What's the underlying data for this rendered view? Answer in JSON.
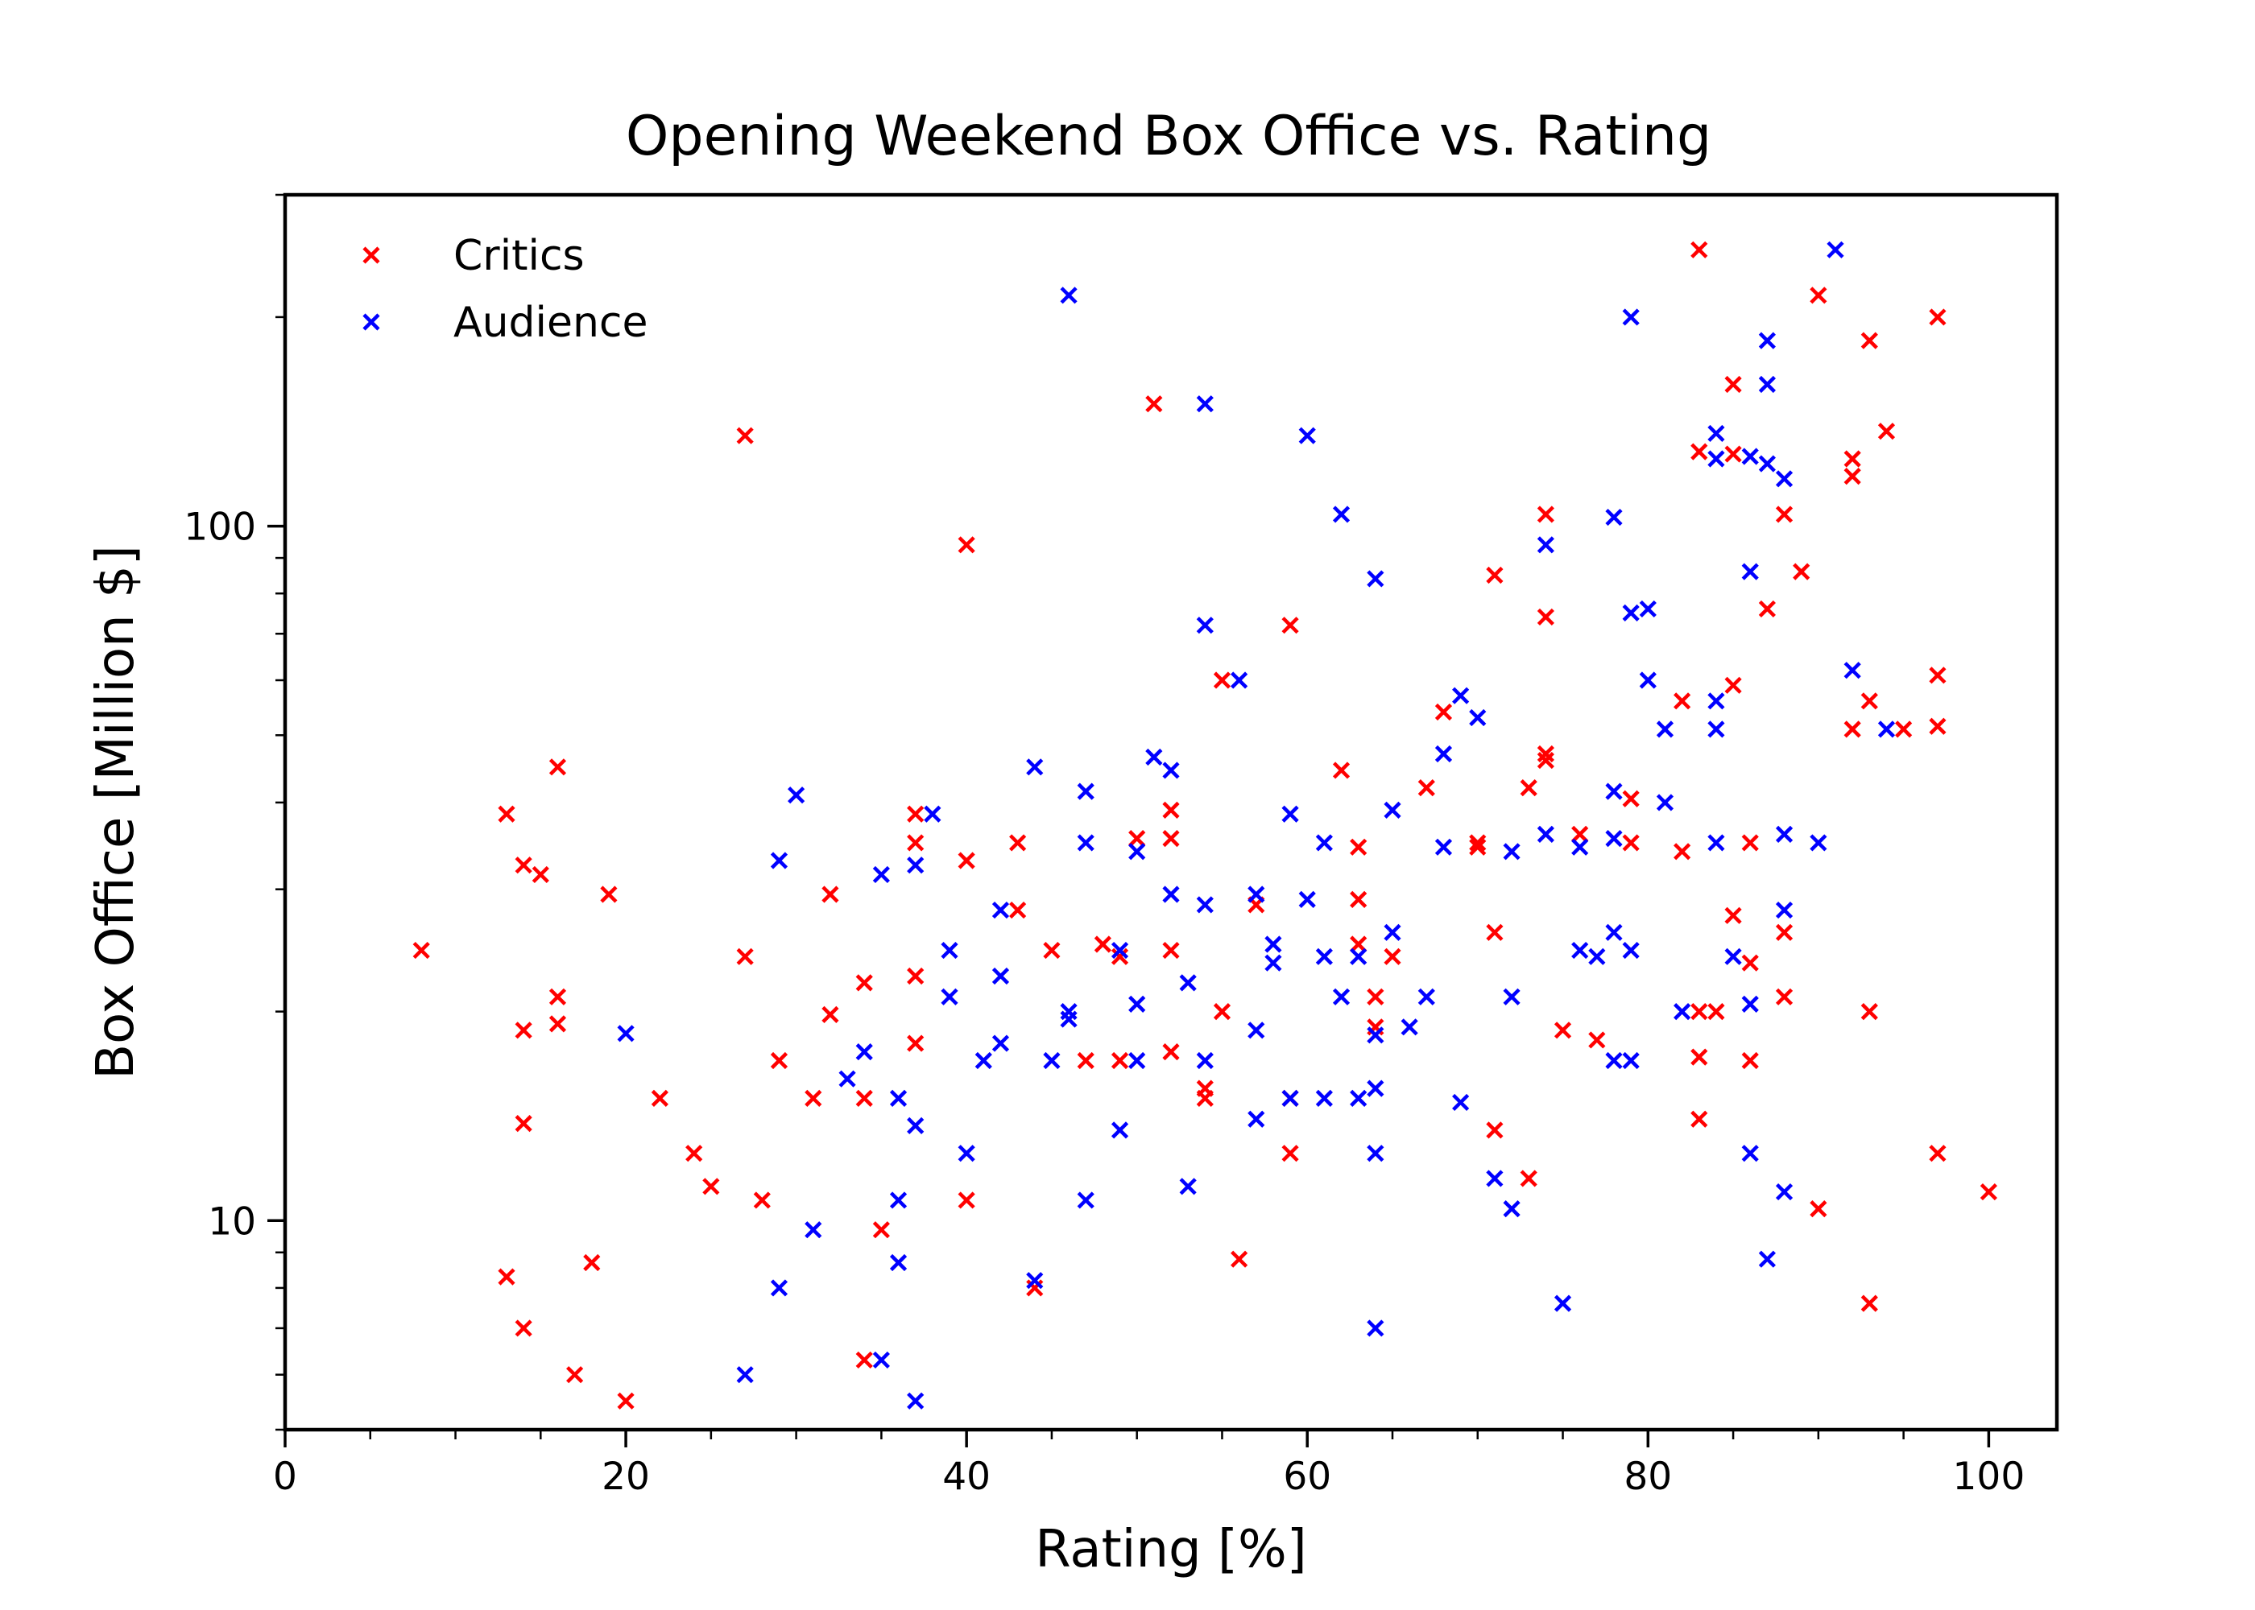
{
  "chart_data": {
    "type": "scatter",
    "title": "Opening Weekend Box Office vs. Rating",
    "xlabel": "Rating [%]",
    "ylabel": "Box Office [Million $]",
    "xlim": [
      0,
      104
    ],
    "ylim": [
      5,
      300
    ],
    "yscale": "log",
    "grid": false,
    "legend": "top-left",
    "x_ticks": [
      0,
      20,
      40,
      60,
      80,
      100
    ],
    "x_tick_labels": [
      "0",
      "20",
      "40",
      "60",
      "80",
      "100"
    ],
    "y_ticks": [
      10,
      100
    ],
    "y_tick_labels": [
      "10",
      "100"
    ],
    "series": [
      {
        "name": "Critics",
        "color": "#ff0000",
        "marker": "x",
        "points": [
          [
            8,
            24.5
          ],
          [
            13,
            38.5
          ],
          [
            13,
            8.3
          ],
          [
            14,
            32.5
          ],
          [
            14,
            18.8
          ],
          [
            14,
            13.8
          ],
          [
            14,
            7
          ],
          [
            15,
            31.5
          ],
          [
            16,
            45
          ],
          [
            16,
            21
          ],
          [
            16,
            19.2
          ],
          [
            17,
            6
          ],
          [
            18,
            8.7
          ],
          [
            19,
            29.5
          ],
          [
            20,
            5.5
          ],
          [
            22,
            15
          ],
          [
            24,
            12.5
          ],
          [
            25,
            11.2
          ],
          [
            27,
            135
          ],
          [
            27,
            24
          ],
          [
            28,
            10.7
          ],
          [
            29,
            17
          ],
          [
            31,
            15
          ],
          [
            32,
            29.5
          ],
          [
            32,
            19.8
          ],
          [
            34,
            22
          ],
          [
            34,
            15
          ],
          [
            34,
            6.3
          ],
          [
            35,
            9.7
          ],
          [
            37,
            38.5
          ],
          [
            37,
            35
          ],
          [
            37,
            22.5
          ],
          [
            37,
            18
          ],
          [
            40,
            94
          ],
          [
            40,
            33
          ],
          [
            40,
            10.7
          ],
          [
            43,
            35
          ],
          [
            43,
            28
          ],
          [
            44,
            8
          ],
          [
            45,
            24.5
          ],
          [
            47,
            17
          ],
          [
            48,
            25
          ],
          [
            49,
            24
          ],
          [
            49,
            17
          ],
          [
            50,
            35.5
          ],
          [
            51,
            150
          ],
          [
            52,
            39
          ],
          [
            52,
            35.5
          ],
          [
            52,
            24.5
          ],
          [
            52,
            17.5
          ],
          [
            54,
            15.5
          ],
          [
            54,
            15
          ],
          [
            55,
            60
          ],
          [
            55,
            20
          ],
          [
            56,
            8.8
          ],
          [
            57,
            28.5
          ],
          [
            59,
            72
          ],
          [
            59,
            15
          ],
          [
            59,
            12.5
          ],
          [
            62,
            44.5
          ],
          [
            63,
            34.5
          ],
          [
            63,
            29
          ],
          [
            63,
            25
          ],
          [
            64,
            21
          ],
          [
            64,
            19
          ],
          [
            65,
            24
          ],
          [
            67,
            42
          ],
          [
            68,
            54
          ],
          [
            70,
            35
          ],
          [
            70,
            34.5
          ],
          [
            71,
            85
          ],
          [
            71,
            26
          ],
          [
            71,
            13.5
          ],
          [
            73,
            42
          ],
          [
            73,
            11.5
          ],
          [
            74,
            104
          ],
          [
            74,
            74
          ],
          [
            74,
            47
          ],
          [
            74,
            46
          ],
          [
            75,
            18.8
          ],
          [
            76,
            36
          ],
          [
            77,
            18.2
          ],
          [
            79,
            40.5
          ],
          [
            79,
            35
          ],
          [
            82,
            56
          ],
          [
            82,
            34
          ],
          [
            83,
            250
          ],
          [
            83,
            128
          ],
          [
            83,
            20
          ],
          [
            83,
            17.2
          ],
          [
            83,
            14
          ],
          [
            84,
            20
          ],
          [
            85,
            160
          ],
          [
            85,
            127
          ],
          [
            85,
            59
          ],
          [
            85,
            27.5
          ],
          [
            86,
            35
          ],
          [
            86,
            23.5
          ],
          [
            86,
            17
          ],
          [
            87,
            76
          ],
          [
            88,
            104
          ],
          [
            88,
            26
          ],
          [
            88,
            21
          ],
          [
            89,
            86
          ],
          [
            90,
            215
          ],
          [
            90,
            10.4
          ],
          [
            92,
            125
          ],
          [
            92,
            118
          ],
          [
            92,
            51
          ],
          [
            93,
            185
          ],
          [
            93,
            56
          ],
          [
            93,
            20
          ],
          [
            93,
            7.6
          ],
          [
            94,
            137
          ],
          [
            95,
            51
          ],
          [
            97,
            200
          ],
          [
            97,
            61
          ],
          [
            97,
            51.5
          ],
          [
            97,
            12.5
          ],
          [
            100,
            11
          ]
        ]
      },
      {
        "name": "Audience",
        "color": "#0000ff",
        "marker": "x",
        "points": [
          [
            20,
            18.6
          ],
          [
            27,
            6
          ],
          [
            29,
            33
          ],
          [
            29,
            8
          ],
          [
            30,
            41
          ],
          [
            31,
            9.7
          ],
          [
            33,
            16
          ],
          [
            34,
            17.5
          ],
          [
            35,
            31.5
          ],
          [
            35,
            6.3
          ],
          [
            36,
            15
          ],
          [
            36,
            10.7
          ],
          [
            36,
            8.7
          ],
          [
            37,
            32.5
          ],
          [
            37,
            13.7
          ],
          [
            37,
            5.5
          ],
          [
            38,
            38.5
          ],
          [
            39,
            24.5
          ],
          [
            39,
            21
          ],
          [
            40,
            12.5
          ],
          [
            41,
            17
          ],
          [
            42,
            28
          ],
          [
            42,
            22.5
          ],
          [
            42,
            18
          ],
          [
            44,
            45
          ],
          [
            44,
            8.2
          ],
          [
            45,
            17
          ],
          [
            46,
            215
          ],
          [
            46,
            20
          ],
          [
            46,
            19.5
          ],
          [
            47,
            41.5
          ],
          [
            47,
            35
          ],
          [
            47,
            10.7
          ],
          [
            49,
            24.5
          ],
          [
            49,
            13.5
          ],
          [
            50,
            34
          ],
          [
            50,
            20.5
          ],
          [
            50,
            17
          ],
          [
            51,
            46.5
          ],
          [
            52,
            44.5
          ],
          [
            52,
            29.5
          ],
          [
            53,
            22
          ],
          [
            53,
            11.2
          ],
          [
            54,
            150
          ],
          [
            54,
            72
          ],
          [
            54,
            28.5
          ],
          [
            54,
            17
          ],
          [
            56,
            60
          ],
          [
            57,
            29.5
          ],
          [
            57,
            18.8
          ],
          [
            57,
            14
          ],
          [
            58,
            25
          ],
          [
            58,
            23.5
          ],
          [
            59,
            38.5
          ],
          [
            59,
            15
          ],
          [
            60,
            135
          ],
          [
            60,
            29
          ],
          [
            61,
            35
          ],
          [
            61,
            24
          ],
          [
            61,
            15
          ],
          [
            62,
            104
          ],
          [
            62,
            21
          ],
          [
            63,
            24
          ],
          [
            63,
            15
          ],
          [
            64,
            84
          ],
          [
            64,
            18.5
          ],
          [
            64,
            15.5
          ],
          [
            64,
            12.5
          ],
          [
            64,
            7
          ],
          [
            65,
            39
          ],
          [
            65,
            26
          ],
          [
            66,
            19
          ],
          [
            67,
            21
          ],
          [
            68,
            47
          ],
          [
            68,
            34.5
          ],
          [
            69,
            57
          ],
          [
            69,
            14.8
          ],
          [
            70,
            53
          ],
          [
            71,
            11.5
          ],
          [
            72,
            34
          ],
          [
            72,
            21
          ],
          [
            72,
            10.4
          ],
          [
            74,
            94
          ],
          [
            74,
            36
          ],
          [
            75,
            7.6
          ],
          [
            76,
            34.5
          ],
          [
            76,
            24.5
          ],
          [
            77,
            24
          ],
          [
            78,
            103
          ],
          [
            78,
            41.5
          ],
          [
            78,
            35.5
          ],
          [
            78,
            26
          ],
          [
            78,
            17
          ],
          [
            79,
            200
          ],
          [
            79,
            75
          ],
          [
            79,
            24.5
          ],
          [
            79,
            17
          ],
          [
            80,
            76
          ],
          [
            80,
            60
          ],
          [
            81,
            51
          ],
          [
            81,
            40
          ],
          [
            82,
            20
          ],
          [
            84,
            136
          ],
          [
            84,
            125
          ],
          [
            84,
            56
          ],
          [
            84,
            51
          ],
          [
            84,
            35
          ],
          [
            85,
            24
          ],
          [
            86,
            126
          ],
          [
            86,
            86
          ],
          [
            86,
            20.5
          ],
          [
            86,
            12.5
          ],
          [
            87,
            185
          ],
          [
            87,
            160
          ],
          [
            87,
            123
          ],
          [
            87,
            8.8
          ],
          [
            88,
            117
          ],
          [
            88,
            36
          ],
          [
            88,
            28
          ],
          [
            88,
            11
          ],
          [
            90,
            35
          ],
          [
            91,
            250
          ],
          [
            92,
            62
          ],
          [
            94,
            51
          ]
        ]
      }
    ]
  }
}
